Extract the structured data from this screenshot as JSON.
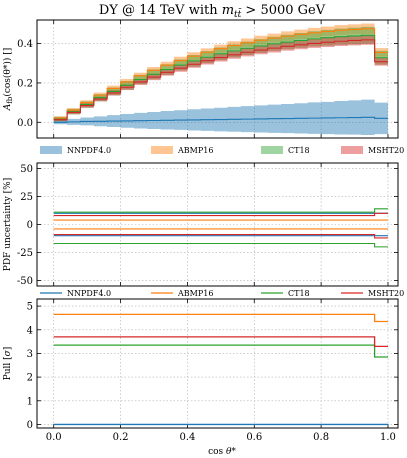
{
  "figure": {
    "title": "DY @ 14 TeV with m_tt̄ > 5000 GeV",
    "title_parts": {
      "main": "DY @ 14 TeV with ",
      "var": "m",
      "sub": "tt̄",
      "rest": " > 5000 GeV"
    },
    "xlabel": "cos θ*"
  },
  "colors": {
    "NNPDF4.0": "#1f77b4",
    "ABMP16": "#ff7f0e",
    "CT18": "#2ca02c",
    "MSHT20": "#d62728"
  },
  "chart_data": [
    {
      "type": "line",
      "panel": "asymmetry",
      "ylabel": "A_fb(cos(θ*)) []",
      "ylabel_parts": {
        "var": "A",
        "sub": "fb",
        "rest": "(cos(θ*)) []"
      },
      "xlim": [
        -0.05,
        1.03
      ],
      "ylim": [
        -0.08,
        0.52
      ],
      "yticks": [
        0.0,
        0.2,
        0.4
      ],
      "xticks": [
        0.0,
        0.2,
        0.4,
        0.6,
        0.8,
        1.0
      ],
      "grid": true,
      "legend_position": "below",
      "x_edges": [
        0.0,
        0.04,
        0.08,
        0.12,
        0.16,
        0.2,
        0.24,
        0.28,
        0.32,
        0.36,
        0.4,
        0.44,
        0.48,
        0.52,
        0.56,
        0.6,
        0.64,
        0.68,
        0.72,
        0.76,
        0.8,
        0.84,
        0.88,
        0.92,
        0.96,
        1.0
      ],
      "series": [
        {
          "name": "NNPDF4.0",
          "values": [
            0.0,
            0.002,
            0.004,
            0.005,
            0.006,
            0.007,
            0.008,
            0.009,
            0.01,
            0.011,
            0.012,
            0.013,
            0.014,
            0.015,
            0.016,
            0.017,
            0.018,
            0.019,
            0.02,
            0.021,
            0.022,
            0.023,
            0.024,
            0.025,
            0.02
          ],
          "band_halfwidth": [
            0.01,
            0.015,
            0.02,
            0.025,
            0.03,
            0.035,
            0.04,
            0.043,
            0.047,
            0.05,
            0.054,
            0.057,
            0.06,
            0.063,
            0.066,
            0.069,
            0.072,
            0.074,
            0.077,
            0.08,
            0.082,
            0.085,
            0.087,
            0.09,
            0.08
          ]
        },
        {
          "name": "ABMP16",
          "values": [
            0.022,
            0.062,
            0.1,
            0.138,
            0.172,
            0.205,
            0.236,
            0.264,
            0.29,
            0.314,
            0.336,
            0.356,
            0.374,
            0.39,
            0.404,
            0.417,
            0.428,
            0.438,
            0.447,
            0.455,
            0.462,
            0.468,
            0.472,
            0.475,
            0.355
          ],
          "band_halfwidth": [
            0.008,
            0.01,
            0.012,
            0.013,
            0.014,
            0.015,
            0.016,
            0.017,
            0.018,
            0.019,
            0.02,
            0.02,
            0.021,
            0.022,
            0.022,
            0.023,
            0.023,
            0.024,
            0.024,
            0.025,
            0.025,
            0.026,
            0.026,
            0.027,
            0.022
          ]
        },
        {
          "name": "CT18",
          "values": [
            0.016,
            0.054,
            0.09,
            0.125,
            0.157,
            0.188,
            0.217,
            0.244,
            0.268,
            0.291,
            0.312,
            0.331,
            0.348,
            0.363,
            0.376,
            0.388,
            0.399,
            0.408,
            0.416,
            0.424,
            0.43,
            0.435,
            0.439,
            0.442,
            0.328
          ],
          "band_halfwidth": [
            0.012,
            0.014,
            0.016,
            0.018,
            0.02,
            0.022,
            0.024,
            0.025,
            0.027,
            0.028,
            0.03,
            0.031,
            0.032,
            0.033,
            0.034,
            0.035,
            0.036,
            0.037,
            0.038,
            0.039,
            0.04,
            0.041,
            0.042,
            0.043,
            0.035
          ]
        },
        {
          "name": "MSHT20",
          "values": [
            0.013,
            0.05,
            0.085,
            0.118,
            0.149,
            0.178,
            0.205,
            0.23,
            0.254,
            0.275,
            0.295,
            0.313,
            0.329,
            0.343,
            0.356,
            0.367,
            0.377,
            0.386,
            0.394,
            0.401,
            0.407,
            0.412,
            0.416,
            0.419,
            0.308
          ],
          "band_halfwidth": [
            0.007,
            0.009,
            0.011,
            0.012,
            0.013,
            0.014,
            0.015,
            0.016,
            0.017,
            0.018,
            0.018,
            0.019,
            0.02,
            0.02,
            0.021,
            0.021,
            0.022,
            0.022,
            0.023,
            0.023,
            0.024,
            0.024,
            0.025,
            0.025,
            0.02
          ]
        }
      ]
    },
    {
      "type": "line",
      "panel": "pdf_uncertainty",
      "ylabel": "PDF uncertainty [%]",
      "xlim": [
        -0.05,
        1.03
      ],
      "ylim": [
        -55,
        55
      ],
      "yticks": [
        -50,
        -25,
        0,
        25,
        50
      ],
      "xticks": [
        0.0,
        0.2,
        0.4,
        0.6,
        0.8,
        1.0
      ],
      "grid": true,
      "legend_position": "below",
      "x_edges": [
        0.0,
        0.96,
        1.0
      ],
      "series": [
        {
          "name": "NNPDF4.0",
          "upper": [
            10.0,
            10.0
          ],
          "lower": [
            -10.0,
            -10.0
          ]
        },
        {
          "name": "ABMP16",
          "upper": [
            4.0,
            4.0
          ],
          "lower": [
            -4.0,
            -4.0
          ]
        },
        {
          "name": "CT18",
          "upper": [
            11.0,
            14.0
          ],
          "lower": [
            -17.0,
            -20.0
          ]
        },
        {
          "name": "MSHT20",
          "upper": [
            8.0,
            10.0
          ],
          "lower": [
            -9.0,
            -12.0
          ]
        }
      ]
    },
    {
      "type": "line",
      "panel": "pull",
      "ylabel": "Pull [σ]",
      "xlim": [
        -0.05,
        1.03
      ],
      "ylim": [
        -0.15,
        5.3
      ],
      "yticks": [
        0,
        1,
        2,
        3,
        4,
        5
      ],
      "xticks": [
        0.0,
        0.2,
        0.4,
        0.6,
        0.8,
        1.0
      ],
      "xtick_labels": [
        "0.0",
        "0.2",
        "0.4",
        "0.6",
        "0.8",
        "1.0"
      ],
      "grid": true,
      "x_edges": [
        0.0,
        0.96,
        1.0
      ],
      "series": [
        {
          "name": "NNPDF4.0",
          "values": [
            0.0,
            0.0
          ]
        },
        {
          "name": "ABMP16",
          "values": [
            4.65,
            4.35
          ]
        },
        {
          "name": "CT18",
          "values": [
            3.35,
            2.85
          ]
        },
        {
          "name": "MSHT20",
          "values": [
            3.7,
            3.3
          ]
        }
      ]
    }
  ],
  "legends": {
    "asymmetry": [
      "NNPDF4.0",
      "ABMP16",
      "CT18",
      "MSHT20"
    ],
    "pdf_uncertainty": [
      "NNPDF4.0",
      "ABMP16",
      "CT18",
      "MSHT20"
    ]
  }
}
